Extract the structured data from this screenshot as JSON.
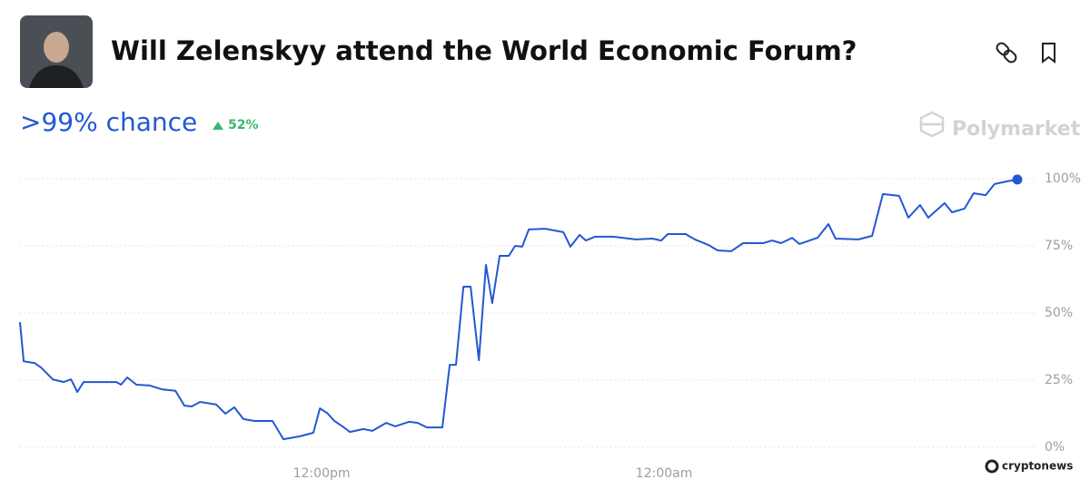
{
  "header": {
    "title": "Will Zelenskyy attend the World Economic Forum?",
    "chance": ">99% chance",
    "change": "52%",
    "brand": "Polymarket",
    "watermark": "cryptonews"
  },
  "chart_data": {
    "type": "line",
    "color": "#2358d2",
    "grid": true,
    "x": [
      1.43,
      1.56,
      1.94,
      2.17,
      2.58,
      2.96,
      3.22,
      3.44,
      3.66,
      4.81,
      4.97,
      5.19,
      5.51,
      5.98,
      6.4,
      6.88,
      7.19,
      7.45,
      7.74,
      8.31,
      8.63,
      8.94,
      9.26,
      9.65,
      10.28,
      10.66,
      11.24,
      11.71,
      11.94,
      12.19,
      12.45,
      12.73,
      12.99,
      13.46,
      13.78,
      14.26,
      14.58,
      15.06,
      15.37,
      15.69,
      16.23,
      16.49,
      16.71,
      16.97,
      17.22,
      17.51,
      17.76,
      17.98,
      18.24,
      18.56,
      18.78,
      19.03,
      19.26,
      19.83,
      20.47,
      20.72,
      21.04,
      21.26,
      21.58,
      22.22,
      23.01,
      23.59,
      23.9,
      24.13,
      24.76,
      25.08,
      25.56,
      25.88,
      26.35,
      26.77,
      27.47,
      27.79,
      28.1,
      28.49,
      28.74,
      29.38,
      29.76,
      30.01,
      30.81,
      31.29,
      31.67,
      32.24,
      32.56,
      32.97,
      33.26,
      33.83,
      34.09,
      34.53,
      34.85,
      35.27,
      35.58,
      36.0,
      36.38
    ],
    "values": [
      46.6,
      32,
      31.4,
      29.7,
      25.3,
      24.3,
      25.3,
      20.6,
      24.3,
      24.3,
      23.3,
      26,
      23.3,
      23,
      21.6,
      21,
      15.5,
      15.2,
      16.9,
      15.9,
      12.5,
      14.9,
      10.5,
      9.8,
      9.8,
      3,
      4.1,
      5.4,
      14.5,
      12.8,
      9.8,
      7.8,
      5.7,
      6.8,
      6.1,
      9.1,
      7.8,
      9.5,
      9.1,
      7.4,
      7.4,
      30.7,
      30.7,
      59.8,
      59.8,
      32.4,
      67.9,
      53.7,
      71.3,
      71.3,
      75,
      74.7,
      81.1,
      81.4,
      80.1,
      74.7,
      79.1,
      77,
      78.4,
      78.4,
      77.4,
      77.7,
      77,
      79.4,
      79.4,
      77.4,
      75.3,
      73.3,
      73,
      76,
      76,
      77,
      76,
      78,
      75.7,
      78,
      83.1,
      77.7,
      77.4,
      78.7,
      94.3,
      93.6,
      85.5,
      90.2,
      85.5,
      90.9,
      87.5,
      88.9,
      94.6,
      93.9,
      98,
      99,
      99.7
    ],
    "xlim": [
      1.43,
      36.38
    ],
    "xticks": [
      {
        "value": 12,
        "label": "12:00pm"
      },
      {
        "value": 24,
        "label": "12:00am"
      }
    ],
    "ylim": [
      0,
      100
    ],
    "yticks": [
      {
        "value": 0,
        "label": "0%"
      },
      {
        "value": 25,
        "label": "25%"
      },
      {
        "value": 50,
        "label": "50%"
      },
      {
        "value": 75,
        "label": "75%"
      },
      {
        "value": 100,
        "label": "100%"
      }
    ]
  }
}
